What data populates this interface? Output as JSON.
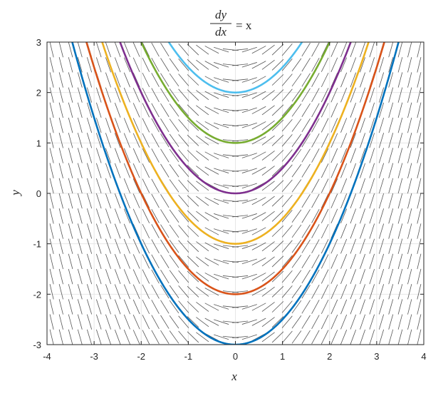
{
  "chart_data": {
    "type": "line",
    "title": {
      "numerator": "dy",
      "denominator": "dx",
      "rhs": "= x"
    },
    "xlabel": "x",
    "ylabel": "y",
    "xlim": [
      -4,
      4
    ],
    "ylim": [
      -3,
      3
    ],
    "x_ticks": [
      -4,
      -3,
      -2,
      -1,
      0,
      1,
      2,
      3,
      4
    ],
    "x_tick_labels": [
      "-4",
      "-3",
      "-2",
      "-1",
      "0",
      "1",
      "2",
      "3",
      "4"
    ],
    "y_ticks": [
      -3,
      -2,
      -1,
      0,
      1,
      2,
      3
    ],
    "y_tick_labels": [
      "-3",
      "-2",
      "-1",
      "0",
      "1",
      "2",
      "3"
    ],
    "grid": true,
    "slope_field": {
      "slope": "x",
      "x_start": -3.9,
      "x_end": 3.9,
      "x_count": 40,
      "y_start": -2.85,
      "y_end": 2.85,
      "y_count": 20,
      "color": "#555555"
    },
    "series": [
      {
        "equation": "y = x^2/2 - 3",
        "c": -3,
        "color": "#0072BD"
      },
      {
        "equation": "y = x^2/2 - 2",
        "c": -2,
        "color": "#D95319"
      },
      {
        "equation": "y = x^2/2 - 1",
        "c": -1,
        "color": "#EDB120"
      },
      {
        "equation": "y = x^2/2",
        "c": 0,
        "color": "#7E2F8E"
      },
      {
        "equation": "y = x^2/2 + 1",
        "c": 1,
        "color": "#77AC30"
      },
      {
        "equation": "y = x^2/2 + 2",
        "c": 2,
        "color": "#4DBEEE"
      }
    ]
  }
}
